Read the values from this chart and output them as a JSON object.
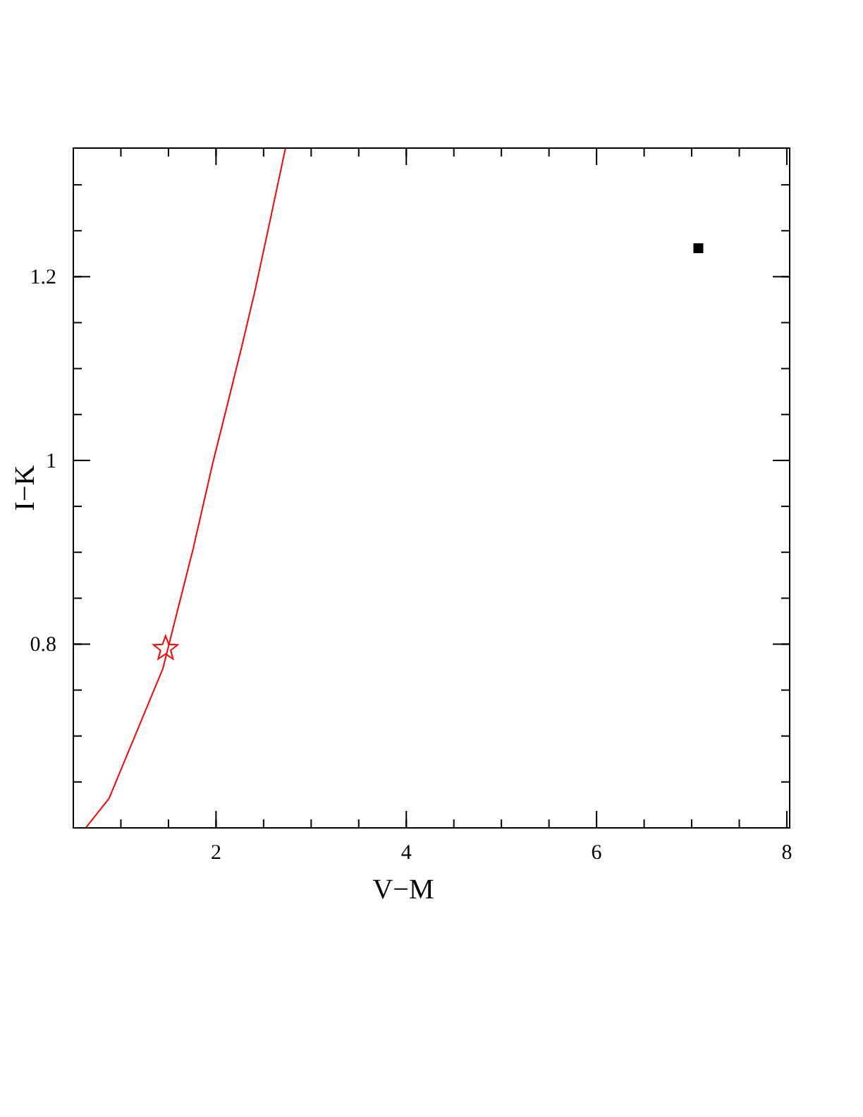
{
  "chart_data": {
    "type": "line",
    "xlabel": "V−M",
    "ylabel": "I−K",
    "xlim": [
      0.5,
      8.03
    ],
    "ylim": [
      0.6,
      1.34
    ],
    "xticks": [
      2,
      4,
      6,
      8
    ],
    "yticks": [
      0.8,
      1,
      1.2
    ],
    "series": [
      {
        "color": "#ff0000",
        "marker": "none",
        "x": [
          0.63,
          0.875,
          1.44,
          1.76,
          1.97,
          2.12,
          2.28,
          2.41,
          2.57,
          2.73
        ],
        "values": [
          0.6,
          0.632,
          0.773,
          0.904,
          0.999,
          1.061,
          1.128,
          1.185,
          1.262,
          1.34
        ]
      },
      {
        "type": "scatter",
        "color": "#ff0000",
        "marker": "star",
        "x": [
          1.47
        ],
        "values": [
          0.795
        ]
      },
      {
        "type": "scatter",
        "color": "#000000",
        "marker": "square",
        "x": [
          7.07
        ],
        "values": [
          1.231
        ]
      }
    ]
  }
}
